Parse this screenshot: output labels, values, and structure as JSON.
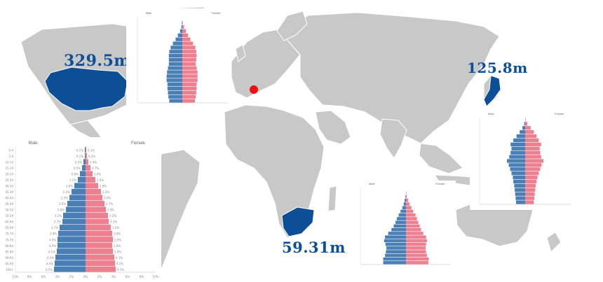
{
  "colors": {
    "land": "#c8c8c8",
    "highlight": "#0d4f96",
    "male": "#4a7fb5",
    "female": "#ec8090",
    "marker": "#ee1111",
    "label": "#0d4f96"
  },
  "labels": {
    "usa": "329.5m",
    "japan": "125.8m",
    "south_africa": "59.31m"
  },
  "chart_data": [
    {
      "type": "bar",
      "name": "usa",
      "male_label": "Male",
      "female_label": "Female",
      "male": [
        2.9,
        3.1,
        3.2,
        3.3,
        3.3,
        3.5,
        3.5,
        3.4,
        3.2,
        3.0,
        3.0,
        3.0,
        2.9,
        2.6,
        2.1,
        1.5,
        1.0,
        0.5,
        0.2,
        0.1,
        0.0
      ],
      "female": [
        2.8,
        3.0,
        3.1,
        3.2,
        3.2,
        3.4,
        3.4,
        3.4,
        3.2,
        3.0,
        3.1,
        3.2,
        3.1,
        2.9,
        2.4,
        1.8,
        1.3,
        0.8,
        0.4,
        0.1,
        0.0
      ],
      "xlim": [
        -10,
        10
      ]
    },
    {
      "type": "bar",
      "name": "japan",
      "male_label": "Male",
      "female_label": "Female",
      "male": [
        2.0,
        2.1,
        2.2,
        2.3,
        2.4,
        2.6,
        2.7,
        3.0,
        3.3,
        3.6,
        4.0,
        3.5,
        3.2,
        3.0,
        3.2,
        2.6,
        1.9,
        1.2,
        0.6,
        0.2,
        0.0
      ],
      "female": [
        1.9,
        2.0,
        2.1,
        2.2,
        2.3,
        2.5,
        2.7,
        3.0,
        3.3,
        3.6,
        4.0,
        3.5,
        3.3,
        3.2,
        3.5,
        3.0,
        2.5,
        1.9,
        1.2,
        0.5,
        0.1
      ],
      "xlim": [
        -10,
        10
      ]
    },
    {
      "type": "bar",
      "name": "south_africa",
      "male_label": "Male",
      "female_label": "Female",
      "male": [
        5.0,
        5.0,
        4.6,
        4.4,
        4.3,
        4.5,
        4.8,
        4.6,
        3.9,
        3.2,
        2.7,
        2.3,
        2.0,
        1.6,
        1.2,
        0.8,
        0.5,
        0.3,
        0.1,
        0.0,
        0.0
      ],
      "female": [
        4.9,
        5.0,
        4.6,
        4.4,
        4.3,
        4.4,
        4.6,
        4.4,
        3.8,
        3.3,
        3.0,
        2.7,
        2.4,
        2.1,
        1.6,
        1.2,
        0.8,
        0.5,
        0.2,
        0.1,
        0.0
      ],
      "xlim": [
        -10,
        10
      ]
    },
    {
      "type": "bar",
      "name": "world_large",
      "male_label": "Male",
      "female_label": "Female",
      "male": [
        4.5,
        4.4,
        4.3,
        4.1,
        4.0,
        4.0,
        3.9,
        3.7,
        3.3,
        3.2,
        2.8,
        2.6,
        2.3,
        2.0,
        1.6,
        1.1,
        0.8,
        0.5,
        0.3,
        0.1,
        0.1
      ],
      "female": [
        4.3,
        4.2,
        4.1,
        3.9,
        3.8,
        3.9,
        3.8,
        3.6,
        3.3,
        3.2,
        2.9,
        2.7,
        2.4,
        2.2,
        1.8,
        1.4,
        1.0,
        0.7,
        0.4,
        0.2,
        0.1
      ],
      "male_values": [
        "4.5%",
        "4.4%",
        "4.3%",
        "4.1%",
        "4.0%",
        "4.0%",
        "3.9%",
        "3.7%",
        "3.3%",
        "3.2%",
        "2.8%",
        "2.6%",
        "2.3%",
        "2.0%",
        "1.6%",
        "1.1%",
        "0.8%",
        "0.5%",
        "0.3%",
        "0.1%",
        "0.1%"
      ],
      "female_values": [
        "4.3%",
        "4.2%",
        "4.1%",
        "3.9%",
        "3.8%",
        "3.9%",
        "3.8%",
        "3.6%",
        "3.3%",
        "3.2%",
        "2.9%",
        "2.7%",
        "2.4%",
        "2.2%",
        "1.8%",
        "1.4%",
        "1.0%",
        "0.7%",
        "0.4%",
        "0.2%",
        "0.1%"
      ],
      "age_groups": [
        "0-4",
        "5-9",
        "10-14",
        "15-19",
        "20-24",
        "25-29",
        "30-34",
        "35-39",
        "40-44",
        "45-49",
        "50-54",
        "55-59",
        "60-64",
        "65-69",
        "70-74",
        "75-79",
        "80-84",
        "85-89",
        "90-94",
        "95-99",
        "100+"
      ],
      "xticks": [
        "10%",
        "8%",
        "6%",
        "4%",
        "2%",
        "0%",
        "2%",
        "4%",
        "6%",
        "8%",
        "10%"
      ],
      "xlim": [
        -10,
        10
      ]
    }
  ]
}
